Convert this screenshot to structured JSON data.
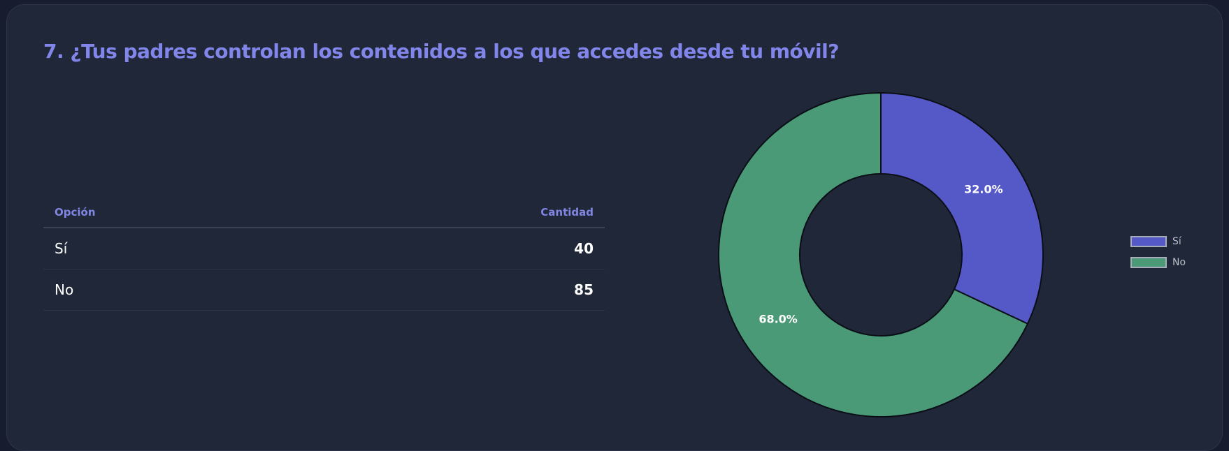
{
  "title": "7. ¿Tus padres controlan los contenidos a los que accedes desde tu móvil?",
  "table": {
    "headers": {
      "option": "Opción",
      "count": "Cantidad"
    },
    "rows": [
      {
        "option": "Sí",
        "count": "40"
      },
      {
        "option": "No",
        "count": "85"
      }
    ]
  },
  "chart_data": {
    "type": "pie",
    "variant": "donut",
    "categories": [
      "Sí",
      "No"
    ],
    "values": [
      40,
      85
    ],
    "labels": [
      "32.0%",
      "68.0%"
    ],
    "colors": [
      "#5559c8",
      "#4a9a77"
    ],
    "legend_position": "right"
  }
}
